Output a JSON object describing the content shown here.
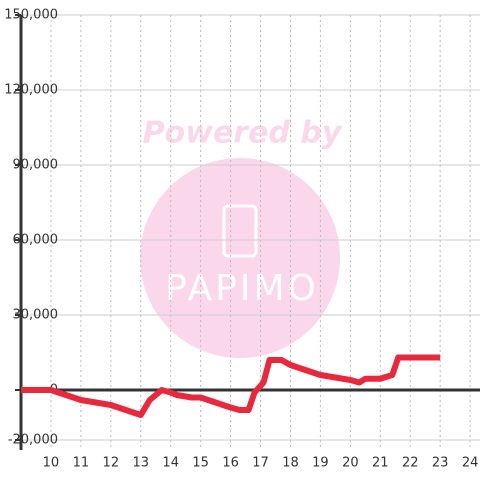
{
  "chart_data": {
    "type": "line",
    "x": [
      9,
      10,
      10.5,
      11,
      11.5,
      12,
      12.5,
      13,
      13.3,
      13.7,
      14,
      14.2,
      14.7,
      15,
      15.5,
      16,
      16.3,
      16.6,
      16.8,
      17.1,
      17.3,
      17.7,
      18,
      18.5,
      19,
      19.5,
      20,
      20.3,
      20.5,
      21,
      21.4,
      21.6,
      23
    ],
    "series": [
      {
        "name": null,
        "color": "#e8283c",
        "values": [
          0,
          0,
          -2000,
          -4000,
          -5000,
          -6000,
          -8000,
          -10000,
          -4000,
          0,
          -1000,
          -2000,
          -3000,
          -3000,
          -5000,
          -7000,
          -8000,
          -8000,
          -1000,
          3000,
          12000,
          12000,
          10000,
          8000,
          6000,
          5000,
          4000,
          3000,
          4500,
          4500,
          6000,
          13000,
          13000
        ]
      }
    ],
    "xlim": [
      9,
      24.33
    ],
    "xticks": [
      10,
      11,
      12,
      13,
      14,
      15,
      16,
      17,
      18,
      19,
      20,
      21,
      22,
      23,
      24
    ],
    "ylim": [
      -20000,
      150000
    ],
    "yticks": [
      {
        "value": -20000,
        "label": "-20,000"
      },
      0,
      {
        "value": 30000,
        "label": "30,000"
      },
      {
        "value": 60000,
        "label": "60,000"
      },
      {
        "value": 90000,
        "label": "90,000"
      },
      {
        "value": 120000,
        "label": "120,000"
      },
      {
        "value": 150000,
        "label": "150,000"
      }
    ],
    "grid": true,
    "watermark": {
      "top": "Powered by",
      "brand": "PAPIMO"
    }
  }
}
